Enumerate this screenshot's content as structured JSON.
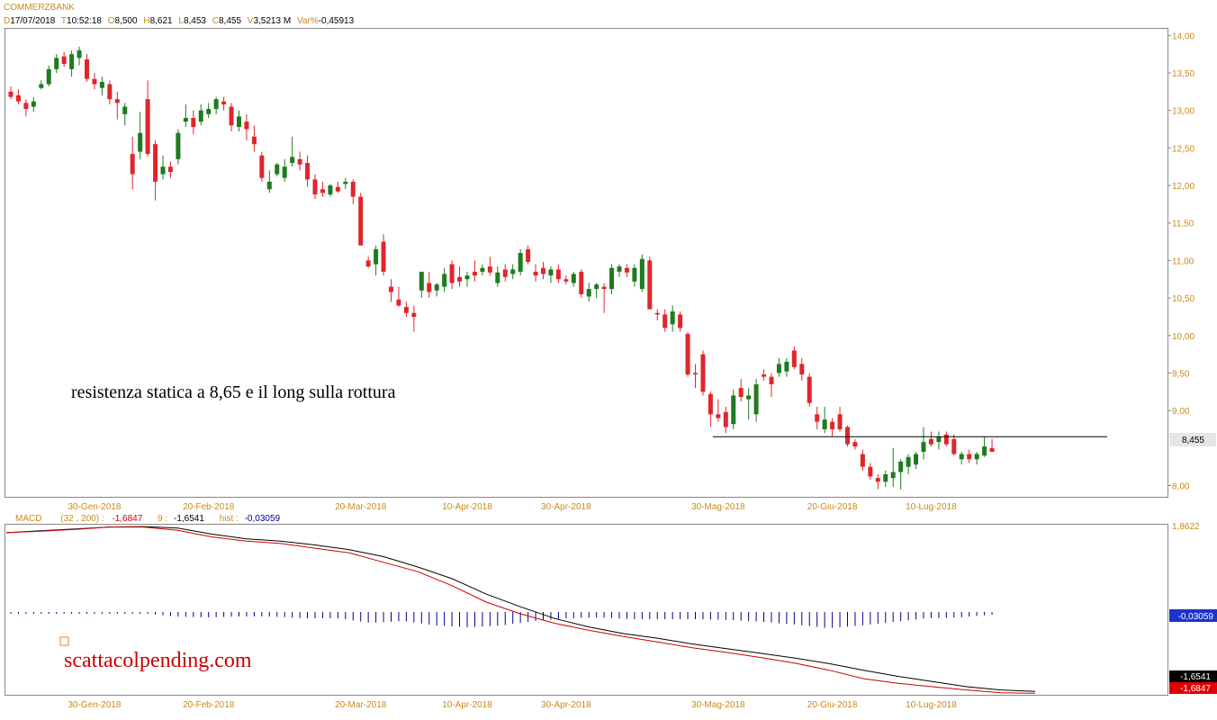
{
  "instrument": "COMMERZBANK",
  "header": {
    "d_label": "D",
    "date": "17/07/2018",
    "t_label": "T",
    "time": "10:52:18",
    "o_label": "O",
    "open": "8,500",
    "h_label": "H",
    "high": "8,621",
    "l_label": "L",
    "low": "8,453",
    "c_label": "C",
    "close": "8,455",
    "v_label": "V",
    "volume": "3,5213 M",
    "var_label": "Var%",
    "var": "-0,45913"
  },
  "annotation": "resistenza statica a 8,65 e il long sulla rottura",
  "watermark": "scattacolpending.com",
  "price_label": "8,455",
  "macd_header": {
    "name": "MACD",
    "params": "(32 , 200) :",
    "macd_value": "-1,6847",
    "signal_label": "9 :",
    "signal_value": "-1,6541",
    "hist_label": "hist :",
    "hist_value": "-0,03059"
  },
  "macd_labels": {
    "top": "1,8622",
    "hist": "-0,03059",
    "signal": "-1,6541",
    "macd": "-1,6847"
  },
  "colors": {
    "up": "#1e7b1e",
    "down": "#e0262b",
    "axis_text": "#c98a1a",
    "macd_line": "#cc0000",
    "signal_line": "#000000",
    "hist_bar": "#00008b",
    "hist_label_bg": "#1a33cc",
    "signal_label_bg": "#000000",
    "macd_label_bg": "#e00000"
  },
  "chart_data": [
    {
      "type": "candlestick",
      "title": "COMMERZBANK",
      "ylim": [
        7.85,
        14.1
      ],
      "y_ticks": [
        "14,00",
        "13,50",
        "13,00",
        "12,50",
        "12,00",
        "11,50",
        "11,00",
        "10,50",
        "10,00",
        "9,50",
        "9,00",
        "8,00"
      ],
      "y_tick_values": [
        14.0,
        13.5,
        13.0,
        12.5,
        12.0,
        11.5,
        11.0,
        10.5,
        10.0,
        9.5,
        9.0,
        8.0
      ],
      "x_labels": [
        {
          "label": "30-Gen-2018",
          "index": 11
        },
        {
          "label": "20-Feb-2018",
          "index": 26
        },
        {
          "label": "20-Mar-2018",
          "index": 46
        },
        {
          "label": "10-Apr-2018",
          "index": 60
        },
        {
          "label": "30-Apr-2018",
          "index": 73
        },
        {
          "label": "30-Mag-2018",
          "index": 93
        },
        {
          "label": "20-Giu-2018",
          "index": 108
        },
        {
          "label": "10-Lug-2018",
          "index": 121
        }
      ],
      "hline": {
        "value": 8.65,
        "start_index": 93,
        "end": "right"
      },
      "candles": [
        [
          13.25,
          13.32,
          13.15,
          13.18
        ],
        [
          13.2,
          13.28,
          13.08,
          13.12
        ],
        [
          13.1,
          13.15,
          12.92,
          13.02
        ],
        [
          13.05,
          13.18,
          12.98,
          13.12
        ],
        [
          13.3,
          13.4,
          13.28,
          13.35
        ],
        [
          13.35,
          13.6,
          13.32,
          13.55
        ],
        [
          13.55,
          13.75,
          13.5,
          13.7
        ],
        [
          13.72,
          13.78,
          13.58,
          13.62
        ],
        [
          13.55,
          13.8,
          13.45,
          13.75
        ],
        [
          13.7,
          13.85,
          13.6,
          13.8
        ],
        [
          13.68,
          13.75,
          13.38,
          13.42
        ],
        [
          13.42,
          13.5,
          13.28,
          13.35
        ],
        [
          13.3,
          13.45,
          13.2,
          13.38
        ],
        [
          13.35,
          13.4,
          13.08,
          13.15
        ],
        [
          13.15,
          13.25,
          12.88,
          13.1
        ],
        [
          12.95,
          13.1,
          12.8,
          13.05
        ],
        [
          12.42,
          12.65,
          11.95,
          12.15
        ],
        [
          12.45,
          12.98,
          12.35,
          12.7
        ],
        [
          13.15,
          13.4,
          12.38,
          12.42
        ],
        [
          12.55,
          12.6,
          11.8,
          12.05
        ],
        [
          12.15,
          12.4,
          12.08,
          12.25
        ],
        [
          12.25,
          12.32,
          12.1,
          12.18
        ],
        [
          12.35,
          12.75,
          12.28,
          12.7
        ],
        [
          12.85,
          13.08,
          12.78,
          12.9
        ],
        [
          12.9,
          13.0,
          12.68,
          12.78
        ],
        [
          12.85,
          13.08,
          12.8,
          13.0
        ],
        [
          12.95,
          13.1,
          12.9,
          13.02
        ],
        [
          13.02,
          13.18,
          12.95,
          13.15
        ],
        [
          13.12,
          13.18,
          13.0,
          13.08
        ],
        [
          13.05,
          13.1,
          12.72,
          12.8
        ],
        [
          12.78,
          13.0,
          12.72,
          12.92
        ],
        [
          12.85,
          12.95,
          12.6,
          12.75
        ],
        [
          12.65,
          12.8,
          12.45,
          12.55
        ],
        [
          12.4,
          12.45,
          12.05,
          12.1
        ],
        [
          11.95,
          12.2,
          11.9,
          12.05
        ],
        [
          12.15,
          12.3,
          12.12,
          12.28
        ],
        [
          12.1,
          12.35,
          12.05,
          12.25
        ],
        [
          12.3,
          12.65,
          12.25,
          12.38
        ],
        [
          12.35,
          12.45,
          12.2,
          12.28
        ],
        [
          12.3,
          12.4,
          11.98,
          12.08
        ],
        [
          12.08,
          12.15,
          11.82,
          11.88
        ],
        [
          11.95,
          12.05,
          11.85,
          11.9
        ],
        [
          11.88,
          12.02,
          11.85,
          12.0
        ],
        [
          11.98,
          12.05,
          11.9,
          11.92
        ],
        [
          12.02,
          12.1,
          11.95,
          12.05
        ],
        [
          12.05,
          12.08,
          11.75,
          11.85
        ],
        [
          11.85,
          11.9,
          11.2,
          11.2
        ],
        [
          11.0,
          11.05,
          10.9,
          10.92
        ],
        [
          10.95,
          11.2,
          10.8,
          11.15
        ],
        [
          11.25,
          11.35,
          10.8,
          10.85
        ],
        [
          10.65,
          10.75,
          10.45,
          10.58
        ],
        [
          10.48,
          10.65,
          10.38,
          10.4
        ],
        [
          10.38,
          10.45,
          10.25,
          10.3
        ],
        [
          10.3,
          10.4,
          10.05,
          10.25
        ],
        [
          10.6,
          10.85,
          10.5,
          10.85
        ],
        [
          10.7,
          10.85,
          10.5,
          10.58
        ],
        [
          10.6,
          10.7,
          10.52,
          10.68
        ],
        [
          10.65,
          10.9,
          10.58,
          10.82
        ],
        [
          10.95,
          11.0,
          10.62,
          10.7
        ],
        [
          10.78,
          10.92,
          10.65,
          10.72
        ],
        [
          10.75,
          10.85,
          10.65,
          10.8
        ],
        [
          10.85,
          11.0,
          10.72,
          10.8
        ],
        [
          10.85,
          10.95,
          10.8,
          10.9
        ],
        [
          10.92,
          11.05,
          10.8,
          10.84
        ],
        [
          10.7,
          10.92,
          10.65,
          10.84
        ],
        [
          10.88,
          10.95,
          10.72,
          10.78
        ],
        [
          10.82,
          10.95,
          10.75,
          10.88
        ],
        [
          10.85,
          11.15,
          10.8,
          11.1
        ],
        [
          11.15,
          11.2,
          10.95,
          10.98
        ],
        [
          10.85,
          10.95,
          10.72,
          10.8
        ],
        [
          10.9,
          10.98,
          10.75,
          10.82
        ],
        [
          10.8,
          10.92,
          10.7,
          10.88
        ],
        [
          10.88,
          10.95,
          10.7,
          10.75
        ],
        [
          10.75,
          10.8,
          10.68,
          10.72
        ],
        [
          10.7,
          10.85,
          10.65,
          10.82
        ],
        [
          10.85,
          10.88,
          10.5,
          10.55
        ],
        [
          10.52,
          10.7,
          10.45,
          10.62
        ],
        [
          10.62,
          10.7,
          10.5,
          10.68
        ],
        [
          10.65,
          10.7,
          10.3,
          10.62
        ],
        [
          10.62,
          10.95,
          10.55,
          10.9
        ],
        [
          10.85,
          10.95,
          10.78,
          10.92
        ],
        [
          10.9,
          10.95,
          10.78,
          10.84
        ],
        [
          10.72,
          10.95,
          10.65,
          10.9
        ],
        [
          10.62,
          11.08,
          10.58,
          11.02
        ],
        [
          11.0,
          11.05,
          10.35,
          10.35
        ],
        [
          10.3,
          10.35,
          10.2,
          10.28
        ],
        [
          10.28,
          10.35,
          10.05,
          10.1
        ],
        [
          10.15,
          10.4,
          10.05,
          10.32
        ],
        [
          10.28,
          10.32,
          10.05,
          10.1
        ],
        [
          10.02,
          10.05,
          9.45,
          9.48
        ],
        [
          9.5,
          9.62,
          9.3,
          9.48
        ],
        [
          9.75,
          9.8,
          9.2,
          9.25
        ],
        [
          9.22,
          9.25,
          8.78,
          8.95
        ],
        [
          8.95,
          9.15,
          8.85,
          8.9
        ],
        [
          8.98,
          9.05,
          8.7,
          8.78
        ],
        [
          8.82,
          9.28,
          8.75,
          9.2
        ],
        [
          9.3,
          9.42,
          9.12,
          9.18
        ],
        [
          9.15,
          9.3,
          8.88,
          9.2
        ],
        [
          8.95,
          9.42,
          8.85,
          9.35
        ],
        [
          9.48,
          9.55,
          9.4,
          9.45
        ],
        [
          9.45,
          9.5,
          9.18,
          9.35
        ],
        [
          9.5,
          9.7,
          9.45,
          9.62
        ],
        [
          9.52,
          9.7,
          9.45,
          9.65
        ],
        [
          9.8,
          9.85,
          9.55,
          9.58
        ],
        [
          9.62,
          9.7,
          9.4,
          9.48
        ],
        [
          9.45,
          9.5,
          9.05,
          9.1
        ],
        [
          8.95,
          9.05,
          8.75,
          8.85
        ],
        [
          8.75,
          9.05,
          8.7,
          8.88
        ],
        [
          8.85,
          8.9,
          8.65,
          8.75
        ],
        [
          8.95,
          9.05,
          8.72,
          8.75
        ],
        [
          8.78,
          8.8,
          8.52,
          8.55
        ],
        [
          8.58,
          8.62,
          8.48,
          8.52
        ],
        [
          8.42,
          8.48,
          8.2,
          8.25
        ],
        [
          8.25,
          8.3,
          8.08,
          8.12
        ],
        [
          8.1,
          8.15,
          7.95,
          8.05
        ],
        [
          8.05,
          8.2,
          7.98,
          8.15
        ],
        [
          8.1,
          8.5,
          7.98,
          8.18
        ],
        [
          8.18,
          8.35,
          7.95,
          8.32
        ],
        [
          8.25,
          8.42,
          8.15,
          8.38
        ],
        [
          8.28,
          8.45,
          8.22,
          8.42
        ],
        [
          8.45,
          8.78,
          8.35,
          8.58
        ],
        [
          8.62,
          8.72,
          8.52,
          8.55
        ],
        [
          8.58,
          8.72,
          8.48,
          8.65
        ],
        [
          8.68,
          8.72,
          8.52,
          8.55
        ],
        [
          8.62,
          8.68,
          8.4,
          8.42
        ],
        [
          8.35,
          8.45,
          8.28,
          8.42
        ],
        [
          8.42,
          8.48,
          8.3,
          8.35
        ],
        [
          8.35,
          8.45,
          8.28,
          8.42
        ],
        [
          8.4,
          8.65,
          8.38,
          8.52
        ],
        [
          8.5,
          8.62,
          8.45,
          8.45
        ]
      ]
    },
    {
      "type": "line",
      "title": "MACD (32 , 200)",
      "series": [
        {
          "name": "MACD",
          "values": [
            1.73,
            1.76,
            1.8,
            1.85,
            1.85,
            1.78,
            1.64,
            1.55,
            1.5,
            1.4,
            1.3,
            1.1,
            0.9,
            0.6,
            0.25,
            0.0,
            -0.2,
            -0.35,
            -0.48,
            -0.6,
            -0.72,
            -0.82,
            -0.93,
            -1.05,
            -1.2,
            -1.38,
            -1.48,
            -1.55,
            -1.62,
            -1.68,
            -1.69
          ]
        },
        {
          "name": "Signal",
          "values": [
            1.73,
            1.77,
            1.81,
            1.85,
            1.86,
            1.83,
            1.7,
            1.6,
            1.55,
            1.47,
            1.37,
            1.22,
            1.0,
            0.75,
            0.42,
            0.15,
            -0.1,
            -0.28,
            -0.42,
            -0.52,
            -0.64,
            -0.74,
            -0.84,
            -0.94,
            -1.06,
            -1.2,
            -1.33,
            -1.44,
            -1.55,
            -1.62,
            -1.65
          ]
        },
        {
          "name": "hist",
          "values": [
            0.0,
            -0.01,
            -0.01,
            0.0,
            -0.01,
            -0.05,
            -0.06,
            -0.05,
            -0.05,
            -0.07,
            -0.07,
            -0.12,
            -0.1,
            -0.15,
            -0.17,
            -0.15,
            -0.1,
            -0.07,
            -0.06,
            -0.08,
            -0.08,
            -0.08,
            -0.09,
            -0.11,
            -0.14,
            -0.18,
            -0.15,
            -0.11,
            -0.07,
            -0.06,
            -0.03
          ]
        }
      ]
    }
  ]
}
